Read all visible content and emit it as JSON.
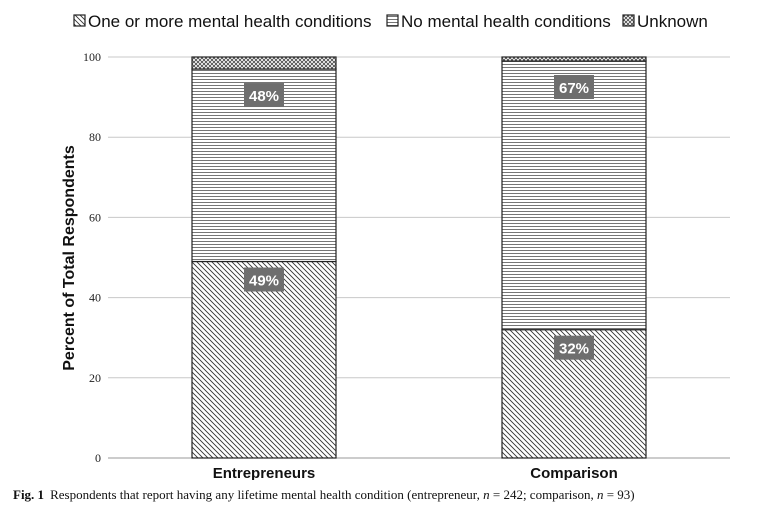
{
  "chart_data": {
    "type": "bar",
    "stacked": true,
    "categories": [
      "Entrepreneurs",
      "Comparison"
    ],
    "series": [
      {
        "name": "One or more mental health conditions",
        "values": [
          49,
          32
        ],
        "pattern": "diagonal-hatch",
        "labels": [
          "49%",
          "32%"
        ]
      },
      {
        "name": "No mental health conditions",
        "values": [
          48,
          67
        ],
        "pattern": "horizontal-lines",
        "labels": [
          "48%",
          "67%"
        ]
      },
      {
        "name": "Unknown",
        "values": [
          3,
          1
        ],
        "pattern": "crosshatch",
        "labels": [
          "",
          ""
        ]
      }
    ],
    "ylabel": "Percent of Total Respondents",
    "xlabel": "",
    "ylim": [
      0,
      100
    ],
    "yticks": [
      0,
      20,
      40,
      60,
      80,
      100
    ],
    "grid": true,
    "legend": "top",
    "colors": {
      "stroke": "#222222",
      "grid": "#c8c8c8",
      "label_bg": "#6e6e6e",
      "label_text": "#ffffff"
    }
  },
  "caption": {
    "fig": "Fig. 1",
    "text_before": "Respondents that report having any lifetime mental health condition (entrepreneur, ",
    "n_var_1": "n",
    "n_val_1": " = 242; comparison, ",
    "n_var_2": "n",
    "n_val_2": " = 93)"
  }
}
